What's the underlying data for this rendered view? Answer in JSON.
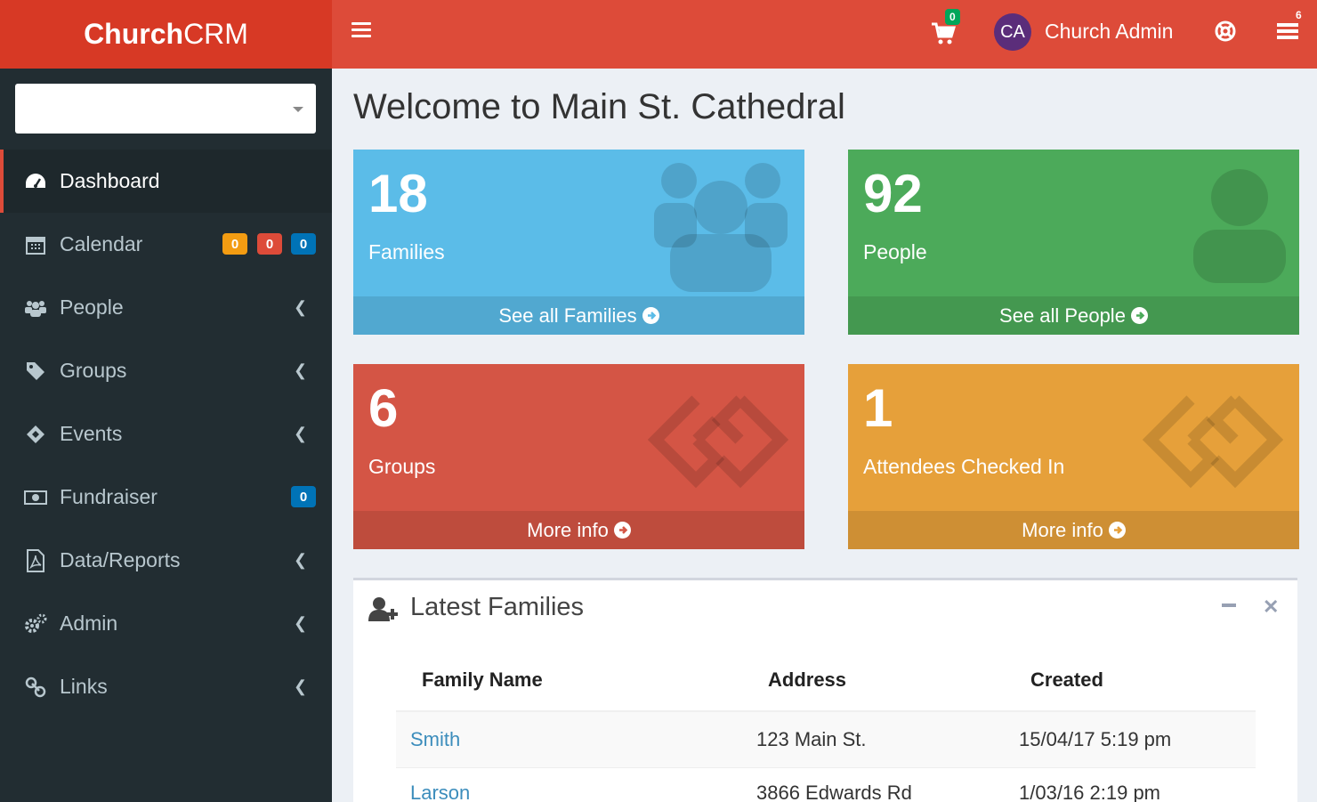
{
  "header": {
    "brand_bold": "Church",
    "brand_regular": "CRM",
    "cart_count": "0",
    "user_initials": "CA",
    "user_name": "Church Admin",
    "tasks_count": "6",
    "accent_color": "#dd4b39"
  },
  "sidebar": {
    "select_value": "",
    "items": [
      {
        "label": "Dashboard",
        "icon": "dashboard-icon",
        "active": true
      },
      {
        "label": "Calendar",
        "icon": "calendar-icon",
        "badges": [
          "0",
          "0",
          "0"
        ]
      },
      {
        "label": "People",
        "icon": "users-icon",
        "has_submenu": true
      },
      {
        "label": "Groups",
        "icon": "tag-icon",
        "has_submenu": true
      },
      {
        "label": "Events",
        "icon": "ticket-icon",
        "has_submenu": true
      },
      {
        "label": "Fundraiser",
        "icon": "money-icon",
        "badges": [
          "0"
        ]
      },
      {
        "label": "Data/Reports",
        "icon": "file-pdf-icon",
        "has_submenu": true
      },
      {
        "label": "Admin",
        "icon": "gears-icon",
        "has_submenu": true
      },
      {
        "label": "Links",
        "icon": "link-icon",
        "has_submenu": true
      }
    ]
  },
  "main": {
    "title": "Welcome to Main St. Cathedral",
    "boxes": [
      {
        "number": "18",
        "label": "Families",
        "footer": "See all Families",
        "color": "#5bbce8",
        "icon": "users-icon"
      },
      {
        "number": "92",
        "label": "People",
        "footer": "See all People",
        "color": "#4caa5a",
        "icon": "user-icon"
      },
      {
        "number": "6",
        "label": "Groups",
        "footer": "More info",
        "color": "#d45545",
        "icon": "gg-icon"
      },
      {
        "number": "1",
        "label": "Attendees Checked In",
        "footer": "More info",
        "color": "#e6a03a",
        "icon": "gg-icon"
      }
    ],
    "latest_families": {
      "title": "Latest Families",
      "columns": [
        "Family Name",
        "Address",
        "Created"
      ],
      "rows": [
        {
          "name": "Smith",
          "address": "123 Main St.",
          "created": "15/04/17 5:19 pm"
        },
        {
          "name": "Larson",
          "address": "3866 Edwards Rd",
          "created": "1/03/16 2:19 pm"
        }
      ]
    }
  }
}
